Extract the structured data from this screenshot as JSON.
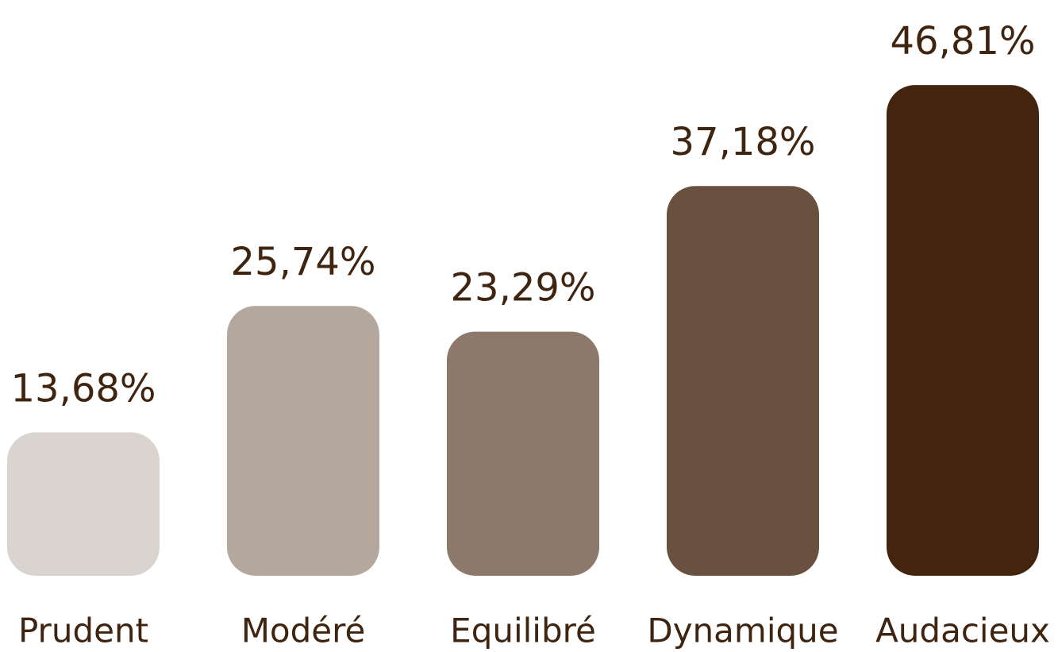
{
  "chart_data": {
    "type": "bar",
    "categories": [
      "Prudent",
      "Modéré",
      "Equilibré",
      "Dynamique",
      "Audacieux"
    ],
    "values": [
      13.68,
      25.74,
      23.29,
      37.18,
      46.81
    ],
    "value_labels": [
      "13,68%",
      "25,74%",
      "23,29%",
      "37,18%",
      "46,81%"
    ],
    "colors": [
      "#d9d4cf",
      "#b4a79e",
      "#8c796c",
      "#6a503f",
      "#43240f"
    ]
  }
}
